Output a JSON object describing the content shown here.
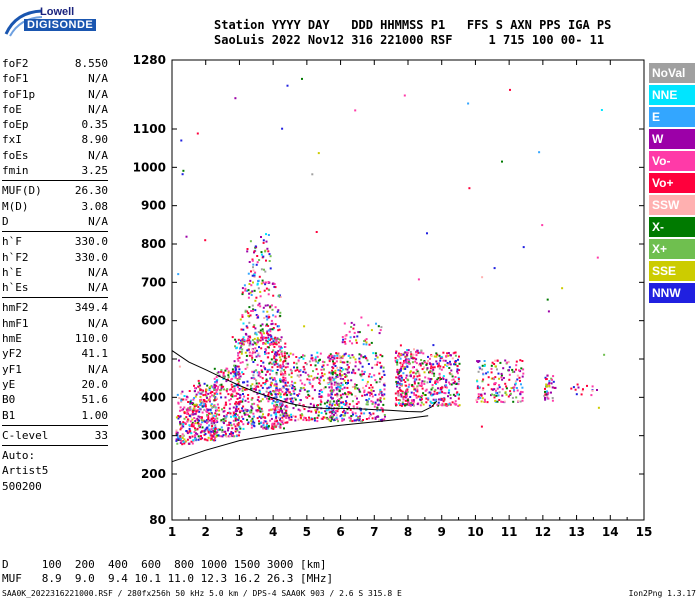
{
  "logo": {
    "line1": "Lowell",
    "line2": "DIGISONDE"
  },
  "header": {
    "row1": "Station YYYY DAY   DDD HHMMSS P1   FFS S AXN PPS IGA PS",
    "row2": "SaoLuis 2022 Nov12 316 221000 RSF     1 715 100 00- 11"
  },
  "params_groups": [
    [
      [
        "foF2",
        "8.550"
      ],
      [
        "foF1",
        "N/A"
      ],
      [
        "foF1p",
        "N/A"
      ],
      [
        "foE",
        "N/A"
      ],
      [
        "foEp",
        "0.35"
      ],
      [
        "fxI",
        "8.90"
      ],
      [
        "foEs",
        "N/A"
      ],
      [
        "fmin",
        "3.25"
      ]
    ],
    [
      [
        "MUF(D)",
        "26.30"
      ],
      [
        "M(D)",
        "3.08"
      ],
      [
        "D",
        "N/A"
      ]
    ],
    [
      [
        "h`F",
        "330.0"
      ],
      [
        "h`F2",
        "330.0"
      ],
      [
        "h`E",
        "N/A"
      ],
      [
        "h`Es",
        "N/A"
      ]
    ],
    [
      [
        "hmF2",
        "349.4"
      ],
      [
        "hmF1",
        "N/A"
      ],
      [
        "hmE",
        "110.0"
      ],
      [
        "yF2",
        "41.1"
      ],
      [
        "yF1",
        "N/A"
      ],
      [
        "yE",
        "20.0"
      ],
      [
        "B0",
        "51.6"
      ],
      [
        "B1",
        "1.00"
      ]
    ],
    [
      [
        "C-level",
        "33"
      ]
    ]
  ],
  "autoscale": [
    "Auto:",
    "Artist5",
    "500200"
  ],
  "legend": [
    {
      "label": "NoVal",
      "color": "#a0a0a0"
    },
    {
      "label": "NNE",
      "color": "#00e5ff"
    },
    {
      "label": "E",
      "color": "#33a6ff"
    },
    {
      "label": "W",
      "color": "#9c00a8"
    },
    {
      "label": "Vo-",
      "color": "#ff3aa8"
    },
    {
      "label": "Vo+",
      "color": "#ff003c"
    },
    {
      "label": "SSW",
      "color": "#ffb0b0"
    },
    {
      "label": "X-",
      "color": "#007a00"
    },
    {
      "label": "X+",
      "color": "#6fbf4f"
    },
    {
      "label": "SSE",
      "color": "#cccc00"
    },
    {
      "label": "NNW",
      "color": "#2020e0"
    }
  ],
  "dtable": {
    "row1": "D     100  200  400  600  800 1000 1500 3000 [km]",
    "row2": "MUF   8.9  9.0  9.4 10.1 11.0 12.3 16.2 26.3 [MHz]"
  },
  "footer": "SAA0K_2022316221000.RSF / 280fx256h 50 kHz 5.0 km / DPS-4 SAA0K 903 / 2.6 S 315.8 E",
  "version": "Ion2Png 1.3.17",
  "chart_data": {
    "type": "scatter",
    "title": "",
    "xlabel": "",
    "ylabel": "",
    "xlim": [
      1,
      15
    ],
    "ylim": [
      80,
      1280
    ],
    "x_ticks": [
      "1",
      "2",
      "3",
      "4",
      "5",
      "6",
      "7",
      "8",
      "9",
      "10",
      "11",
      "12",
      "13",
      "14",
      "15"
    ],
    "y_ticks": [
      "80",
      "200",
      "300",
      "400",
      "500",
      "600",
      "700",
      "800",
      "900",
      "1000",
      "1100",
      "1280"
    ],
    "y_tick_values": [
      80,
      200,
      300,
      400,
      500,
      600,
      700,
      800,
      900,
      1000,
      1100,
      1280
    ],
    "trace_lower": {
      "x": [
        1.0,
        2.0,
        3.0,
        4.0,
        5.0,
        6.0,
        7.0,
        8.0,
        8.6
      ],
      "y": [
        232,
        262,
        287,
        303,
        316,
        327,
        336,
        345,
        352
      ]
    },
    "trace_upper": {
      "x": [
        1.0,
        1.5,
        2.0,
        2.5,
        3.0,
        3.5,
        4.0,
        4.5,
        5.0,
        5.5,
        6.0,
        6.5,
        7.0,
        7.5,
        8.0,
        8.4,
        8.7,
        8.85
      ],
      "y": [
        522,
        492,
        472,
        451,
        431,
        413,
        398,
        384,
        375,
        371,
        371,
        370,
        368,
        366,
        363,
        362,
        375,
        390
      ]
    },
    "echo_clusters": [
      {
        "x": [
          1.1,
          1.6
        ],
        "y": [
          280,
          420
        ],
        "n": 140
      },
      {
        "x": [
          1.6,
          2.3
        ],
        "y": [
          290,
          440
        ],
        "n": 260
      },
      {
        "x": [
          2.2,
          3.0
        ],
        "y": [
          300,
          480
        ],
        "n": 220
      },
      {
        "x": [
          2.8,
          4.4
        ],
        "y": [
          320,
          560
        ],
        "n": 520
      },
      {
        "x": [
          3.0,
          4.2
        ],
        "y": [
          540,
          700
        ],
        "n": 180
      },
      {
        "x": [
          3.2,
          3.9
        ],
        "y": [
          700,
          840
        ],
        "n": 60
      },
      {
        "x": [
          4.0,
          6.0
        ],
        "y": [
          340,
          520
        ],
        "n": 420
      },
      {
        "x": [
          5.6,
          7.3
        ],
        "y": [
          340,
          520
        ],
        "n": 360
      },
      {
        "x": [
          6.0,
          7.2
        ],
        "y": [
          540,
          620
        ],
        "n": 40
      },
      {
        "x": [
          7.6,
          8.4
        ],
        "y": [
          380,
          530
        ],
        "n": 260
      },
      {
        "x": [
          8.4,
          9.5
        ],
        "y": [
          380,
          520
        ],
        "n": 240
      },
      {
        "x": [
          10.0,
          11.4
        ],
        "y": [
          390,
          500
        ],
        "n": 160
      },
      {
        "x": [
          12.0,
          12.3
        ],
        "y": [
          390,
          460
        ],
        "n": 40
      },
      {
        "x": [
          12.8,
          13.6
        ],
        "y": [
          410,
          440
        ],
        "n": 14
      },
      {
        "x": [
          1.0,
          13.8
        ],
        "y": [
          300,
          1270
        ],
        "n": 60
      }
    ]
  }
}
